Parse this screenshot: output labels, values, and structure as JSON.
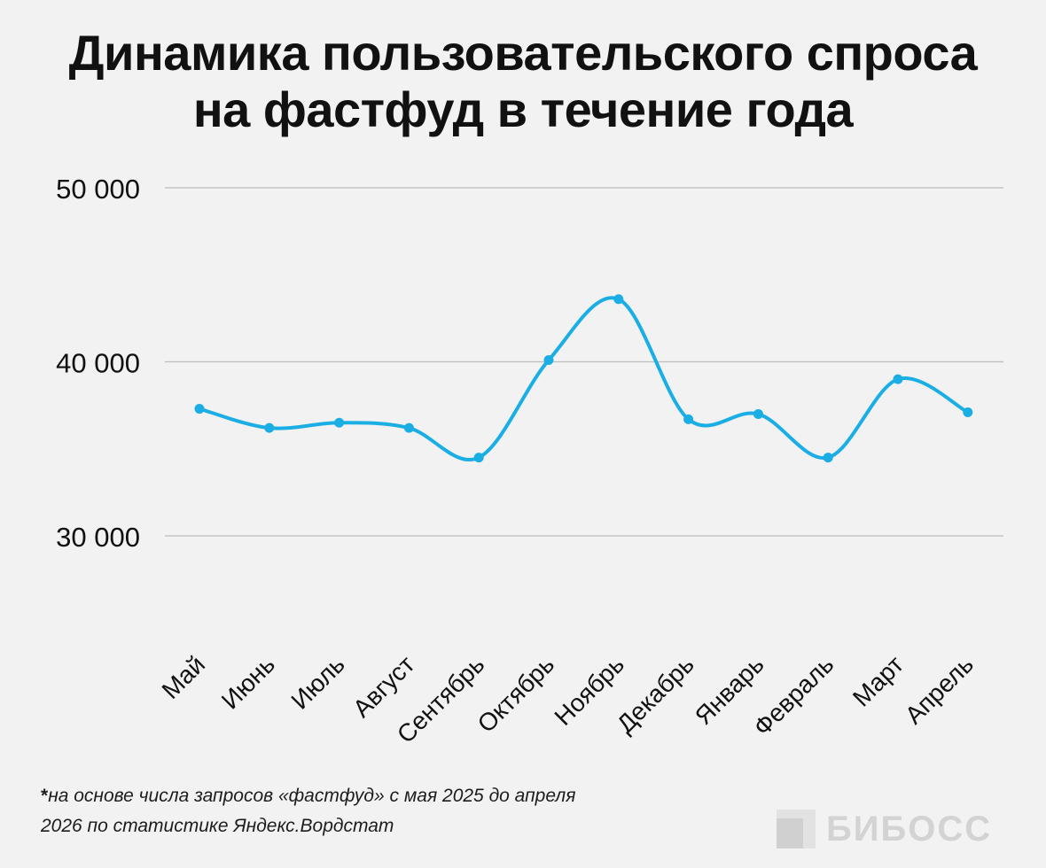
{
  "title_lines": [
    "Динамика пользовательского спроса",
    "на фастфуд в течение года"
  ],
  "footnote": {
    "marker": "*",
    "line1": "на основе числа запросов «фастфуд» с мая 2025 до апреля",
    "line2": "2026 по статистике Яндекс.Вордстат"
  },
  "logo": {
    "text": "БИБОСС"
  },
  "colors": {
    "line": "#1aaee5",
    "grid": "#bdbdbd",
    "text": "#111111",
    "background": "#f2f2f2"
  },
  "chart_data": {
    "type": "line",
    "title": "Динамика пользовательского спроса на фастфуд в течение года",
    "categories": [
      "Май",
      "Июнь",
      "Июль",
      "Август",
      "Сентябрь",
      "Октябрь",
      "Ноябрь",
      "Декабрь",
      "Январь",
      "Февраль",
      "Март",
      "Апрель"
    ],
    "series": [
      {
        "values": [
          37300,
          36200,
          36500,
          36200,
          34500,
          40100,
          43600,
          36700,
          37000,
          34500,
          39000,
          37100
        ]
      }
    ],
    "ylim": [
      30000,
      50000
    ],
    "yticks": [
      30000,
      40000,
      50000
    ],
    "ytick_labels": [
      "30 000",
      "40 000",
      "50 000"
    ],
    "grid": true,
    "legend": "none",
    "xlabel": "",
    "ylabel": ""
  }
}
